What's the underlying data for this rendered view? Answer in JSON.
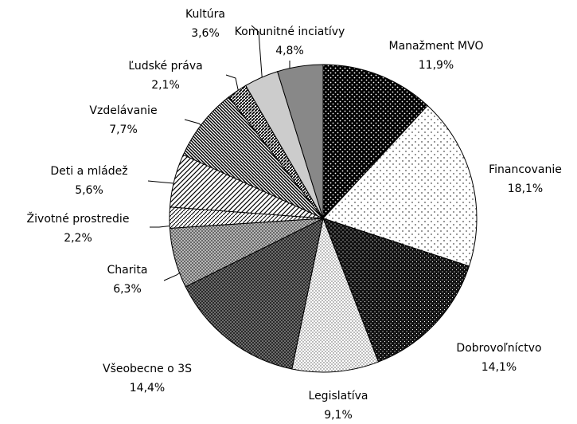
{
  "chart_data": {
    "type": "pie",
    "categories": [
      "Manažment MVO",
      "Financovanie",
      "Dobrovoľníctvo",
      "Legislatíva",
      "Všeobecne o 3S",
      "Charita",
      "Životné prostredie",
      "Deti a mládež",
      "Vzdelávanie",
      "Ľudské práva",
      "Kultúra",
      "Komunitné inciatívy"
    ],
    "values": [
      11.9,
      18.1,
      14.1,
      9.1,
      14.4,
      6.3,
      2.2,
      5.6,
      7.7,
      2.1,
      3.6,
      4.8
    ],
    "value_labels": [
      "11,9%",
      "18,1%",
      "14,1%",
      "9,1%",
      "14,4%",
      "6,3%",
      "2,2%",
      "5,6%",
      "7,7%",
      "2,1%",
      "3,6%",
      "4,8%"
    ]
  }
}
